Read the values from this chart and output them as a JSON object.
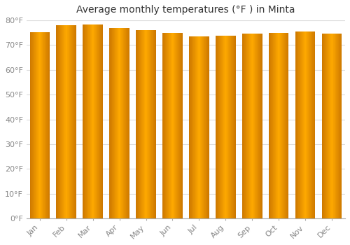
{
  "title": "Average monthly temperatures (°F ) in Minta",
  "months": [
    "Jan",
    "Feb",
    "Mar",
    "Apr",
    "May",
    "Jun",
    "Jul",
    "Aug",
    "Sep",
    "Oct",
    "Nov",
    "Dec"
  ],
  "values": [
    75.2,
    78.1,
    78.4,
    77.0,
    76.1,
    74.8,
    73.6,
    73.8,
    74.7,
    74.8,
    75.4,
    74.6
  ],
  "bar_color_center": "#FFB800",
  "bar_color_edge": "#E08000",
  "background_color": "#FFFFFF",
  "plot_bg_color": "#FFFFFF",
  "ylim": [
    0,
    80
  ],
  "yticks": [
    0,
    10,
    20,
    30,
    40,
    50,
    60,
    70,
    80
  ],
  "ytick_labels": [
    "0°F",
    "10°F",
    "20°F",
    "30°F",
    "40°F",
    "50°F",
    "60°F",
    "70°F",
    "80°F"
  ],
  "title_fontsize": 10,
  "tick_fontsize": 8,
  "grid_color": "#DDDDDD",
  "bar_width": 0.75,
  "tick_color": "#888888"
}
